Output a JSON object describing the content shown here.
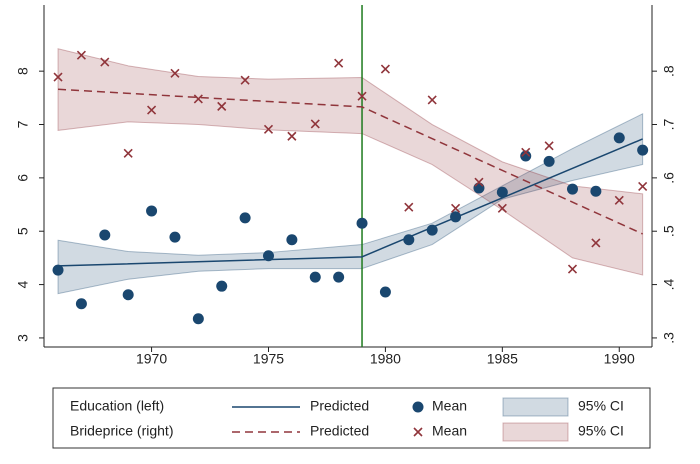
{
  "chart_data": {
    "type": "combo",
    "xlim": [
      1965.4,
      1991.4
    ],
    "xticks": [
      1970,
      1975,
      1980,
      1985,
      1990
    ],
    "ylim": [
      2.83,
      9.24
    ],
    "yticks": [
      3,
      4,
      5,
      6,
      7,
      8
    ],
    "y2lim": [
      0.283,
      0.924
    ],
    "y2ticks": [
      {
        "value": 0.3,
        "label": ".3"
      },
      {
        "value": 0.4,
        "label": ".4"
      },
      {
        "value": 0.5,
        "label": ".5"
      },
      {
        "value": 0.6,
        "label": ".6"
      },
      {
        "value": 0.7,
        "label": ".7"
      },
      {
        "value": 0.8,
        "label": ".8"
      }
    ],
    "vline": {
      "x": 1979,
      "color": "#1e7a1e"
    },
    "groups": [
      {
        "label": "Education (left)",
        "series": [
          {
            "name": "Predicted",
            "kind": "line",
            "color": "#1a476f",
            "dash": false,
            "axis": "y",
            "x": [
              1966,
              1979,
              1991
            ],
            "values": [
              4.35,
              4.52,
              6.73
            ]
          },
          {
            "name": "Mean",
            "kind": "scatter",
            "marker": "circle",
            "color": "#1a476f",
            "axis": "y",
            "x": [
              1966,
              1967,
              1968,
              1969,
              1970,
              1971,
              1972,
              1973,
              1974,
              1975,
              1976,
              1977,
              1978,
              1979,
              1980,
              1981,
              1982,
              1983,
              1984,
              1985,
              1986,
              1987,
              1988,
              1989,
              1990,
              1991
            ],
            "values": [
              4.27,
              3.64,
              4.93,
              3.81,
              5.38,
              4.89,
              3.36,
              3.97,
              5.25,
              4.54,
              4.84,
              4.14,
              4.14,
              5.15,
              3.86,
              4.84,
              5.02,
              5.27,
              5.81,
              5.73,
              6.41,
              6.31,
              5.79,
              5.75,
              6.75,
              6.52
            ]
          },
          {
            "name": "95% CI",
            "kind": "band",
            "color": "#1a476f",
            "axis": "y",
            "x": [
              1966,
              1969,
              1972,
              1975,
              1979,
              1979,
              1982,
              1985,
              1988,
              1991
            ],
            "upper": [
              4.83,
              4.62,
              4.55,
              4.6,
              4.75,
              4.75,
              5.15,
              5.85,
              6.55,
              7.2
            ],
            "lower": [
              3.83,
              4.1,
              4.25,
              4.3,
              4.3,
              4.3,
              4.75,
              5.6,
              5.95,
              6.25
            ]
          }
        ]
      },
      {
        "label": "Brideprice (right)",
        "series": [
          {
            "name": "Predicted",
            "kind": "line",
            "color": "#90353b",
            "dash": true,
            "axis": "y2",
            "x": [
              1966,
              1979,
              1991
            ],
            "values": [
              0.766,
              0.733,
              0.495
            ]
          },
          {
            "name": "Mean",
            "kind": "scatter",
            "marker": "x",
            "color": "#90353b",
            "axis": "y2",
            "x": [
              1966,
              1967,
              1968,
              1969,
              1970,
              1971,
              1972,
              1973,
              1974,
              1975,
              1976,
              1977,
              1978,
              1979,
              1980,
              1981,
              1982,
              1983,
              1984,
              1985,
              1986,
              1987,
              1988,
              1989,
              1990,
              1991
            ],
            "values": [
              0.789,
              0.83,
              0.817,
              0.646,
              0.727,
              0.796,
              0.748,
              0.734,
              0.783,
              0.691,
              0.678,
              0.701,
              0.815,
              0.753,
              0.804,
              0.545,
              0.746,
              0.543,
              0.592,
              0.543,
              0.648,
              0.66,
              0.429,
              0.478,
              0.558,
              0.584
            ]
          },
          {
            "name": "95% CI",
            "kind": "band",
            "color": "#90353b",
            "axis": "y2",
            "x": [
              1966,
              1969,
              1972,
              1975,
              1979,
              1979,
              1982,
              1985,
              1988,
              1991
            ],
            "upper": [
              0.842,
              0.81,
              0.79,
              0.785,
              0.788,
              0.788,
              0.7,
              0.63,
              0.585,
              0.57
            ],
            "lower": [
              0.689,
              0.705,
              0.7,
              0.69,
              0.683,
              0.683,
              0.625,
              0.54,
              0.45,
              0.418
            ]
          }
        ]
      }
    ]
  }
}
